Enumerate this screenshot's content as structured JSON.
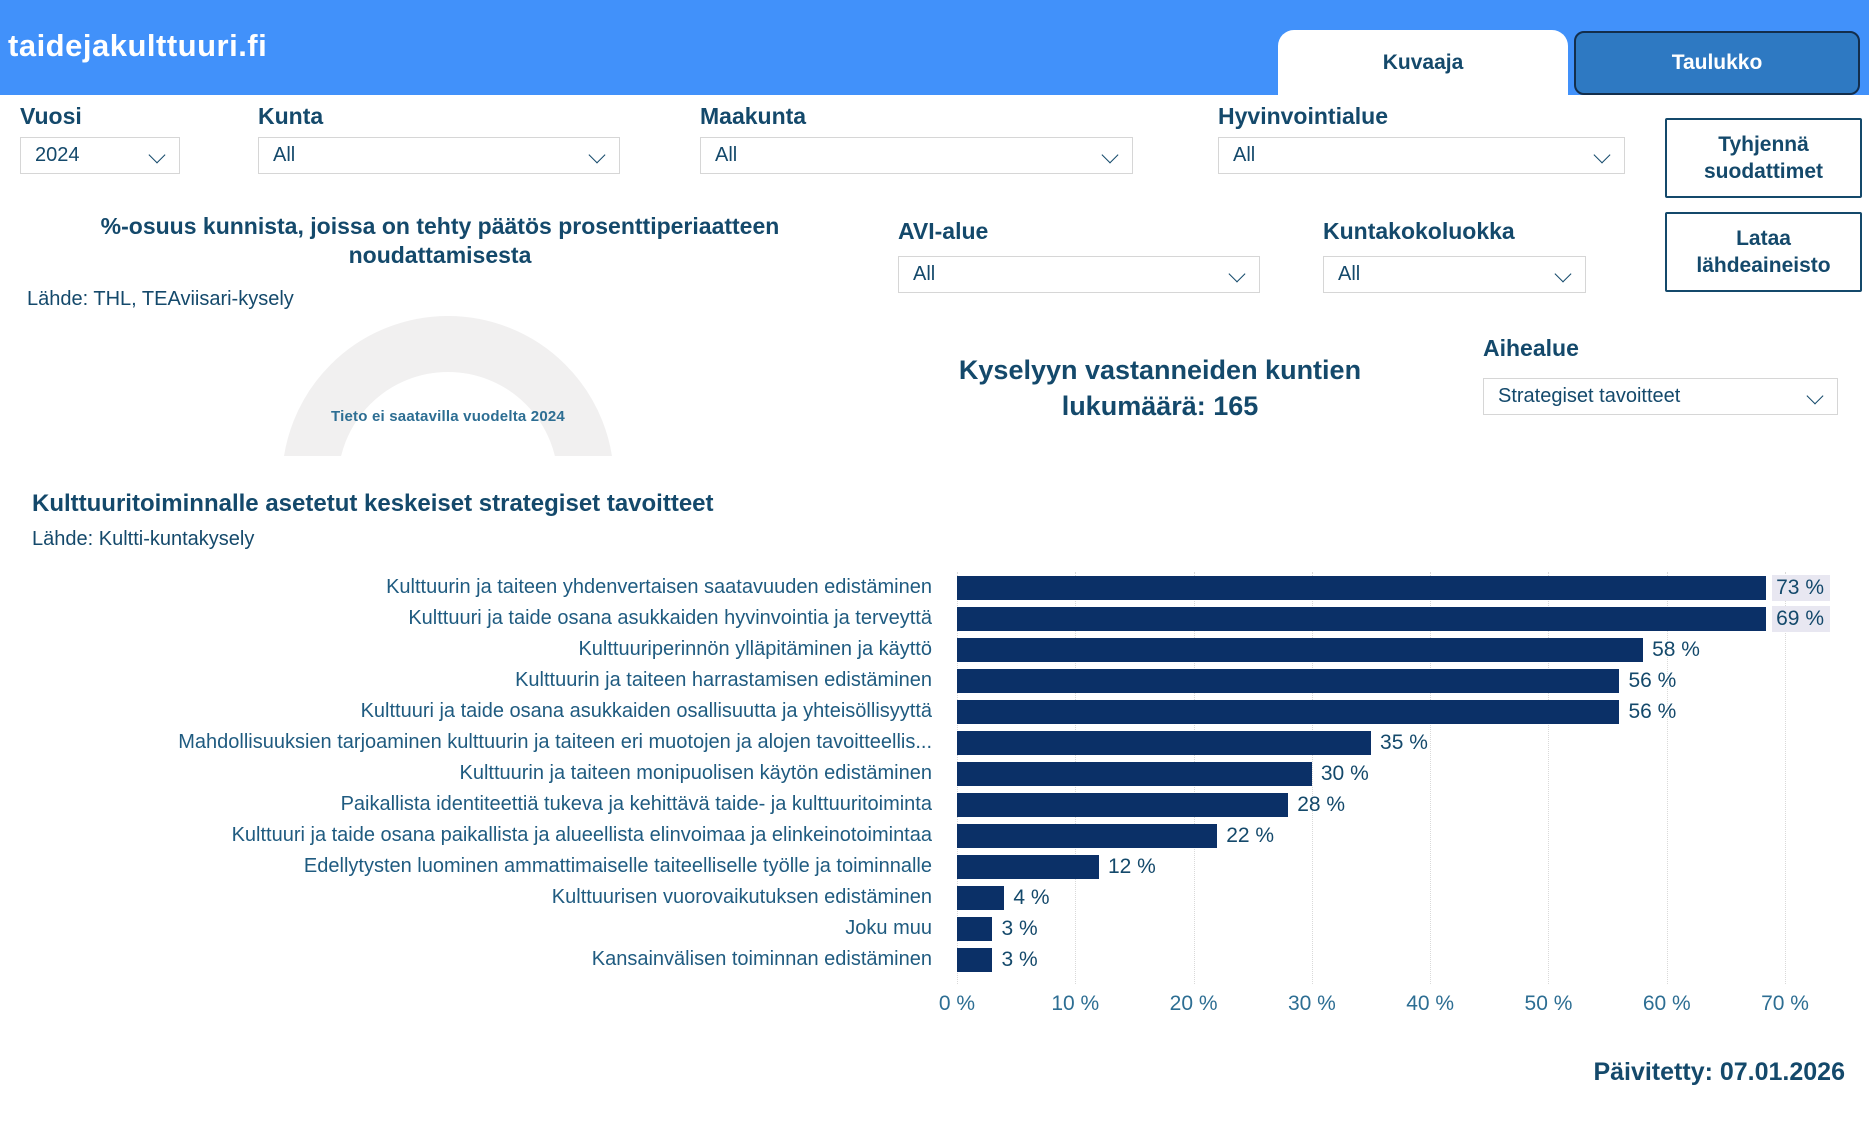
{
  "header": {
    "site_title": "taidejakulttuuri.fi",
    "tabs": [
      {
        "label": "Kuvaaja",
        "active": true
      },
      {
        "label": "Taulukko",
        "active": false
      }
    ]
  },
  "filters": {
    "vuosi": {
      "label": "Vuosi",
      "value": "2024"
    },
    "kunta": {
      "label": "Kunta",
      "value": "All"
    },
    "maakunta": {
      "label": "Maakunta",
      "value": "All"
    },
    "hyvinvointialue": {
      "label": "Hyvinvointialue",
      "value": "All"
    },
    "avi_alue": {
      "label": "AVI-alue",
      "value": "All"
    },
    "kuntakokoluokka": {
      "label": "Kuntakokoluokka",
      "value": "All"
    },
    "aihealue": {
      "label": "Aihealue",
      "value": "Strategiset tavoitteet"
    }
  },
  "buttons": {
    "clear_filters": "Tyhjennä suodattimet",
    "download_source": "Lataa lähdeaineisto"
  },
  "gauge": {
    "title": "%-osuus kunnista, joissa on tehty päätös prosenttiperiaatteen noudattamisesta",
    "source": "Lähde: THL, TEAviisari-kysely",
    "no_data_text": "Tieto ei saatavilla vuodelta 2024"
  },
  "respondents_note": "Kyselyyn vastanneiden kuntien lukumäärä: 165",
  "chart_data": {
    "type": "bar",
    "orientation": "horizontal",
    "title": "Kulttuuritoiminnalle asetetut keskeiset strategiset tavoitteet",
    "source": "Lähde: Kultti-kuntakysely",
    "categories": [
      "Kulttuurin ja taiteen yhdenvertaisen saatavuuden edistäminen",
      "Kulttuuri ja taide osana asukkaiden hyvinvointia ja terveyttä",
      "Kulttuuriperinnön ylläpitäminen ja käyttö",
      "Kulttuurin ja taiteen harrastamisen edistäminen",
      "Kulttuuri ja taide osana asukkaiden osallisuutta ja yhteisöllisyyttä",
      "Mahdollisuuksien tarjoaminen kulttuurin ja taiteen eri muotojen ja alojen tavoitteellis...",
      "Kulttuurin ja taiteen monipuolisen käytön edistäminen",
      "Paikallista identiteettiä tukeva ja kehittävä taide- ja kulttuuritoiminta",
      "Kulttuuri ja taide osana paikallista ja alueellista elinvoimaa ja elinkeinotoimintaa",
      "Edellytysten luominen ammattimaiselle taiteelliselle työlle ja toiminnalle",
      "Kulttuurisen vuorovaikutuksen edistäminen",
      "Joku muu",
      "Kansainvälisen toiminnan edistäminen"
    ],
    "values": [
      73,
      69,
      58,
      56,
      56,
      35,
      30,
      28,
      22,
      12,
      4,
      3,
      3
    ],
    "value_suffix": " %",
    "xlabel": "",
    "ylabel": "",
    "xlim": [
      0,
      73.8
    ],
    "x_ticks": [
      0,
      10,
      20,
      30,
      40,
      50,
      60,
      70
    ],
    "x_tick_suffix": " %",
    "grid": "vertical-dotted",
    "legend": "none",
    "bar_color": "#0b3067"
  },
  "footer": {
    "updated": "Päivitetty: 07.01.2026"
  },
  "colors": {
    "header_bg": "#4191fa",
    "inactive_tab_bg": "#2e79c2",
    "bar": "#0b3067",
    "heading_text": "#14496b",
    "axis_text": "#2d6e93",
    "gauge_ring": "#f1f0f0"
  }
}
